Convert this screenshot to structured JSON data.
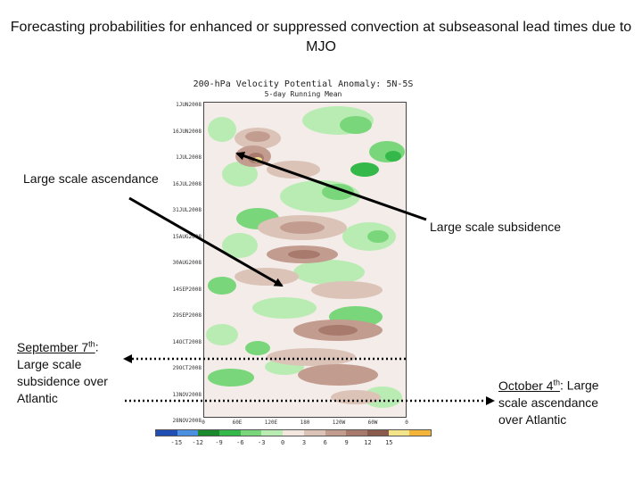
{
  "slide": {
    "title": "Forecasting probabilities for enhanced or suppressed convection at subseasonal lead times due to MJO"
  },
  "figure": {
    "title_line1": "200-hPa Velocity Potential Anomaly: 5N-5S",
    "title_line2": "5-day Running Mean",
    "y_tick_labels": [
      "1JUN2008",
      "16JUN2008",
      "1JUL2008",
      "16JUL2008",
      "31JUL2008",
      "15AUG2008",
      "30AUG2008",
      "14SEP2008",
      "29SEP2008",
      "14OCT2008",
      "29OCT2008",
      "13NOV2008",
      "28NOV2008"
    ],
    "x_tick_labels": [
      "0",
      "60E",
      "120E",
      "180",
      "120W",
      "60W",
      "0"
    ],
    "colorbar": {
      "colors": [
        "#1f4fb4",
        "#4a8fe0",
        "#1a8a2c",
        "#34b84a",
        "#79d67a",
        "#b9ecb3",
        "#f2e6df",
        "#dcc3b8",
        "#c39c90",
        "#a87a6e",
        "#8a5a4d",
        "#f3e48a",
        "#f4b43a"
      ],
      "tick_labels": [
        "-15",
        "-12",
        "-9",
        "-6",
        "-3",
        "0",
        "3",
        "6",
        "9",
        "12",
        "15"
      ]
    }
  },
  "annotations": {
    "ascendance": "Large scale ascendance",
    "subsidence": "Large scale subsidence",
    "sept_date": "September 7",
    "sept_sup": "th",
    "sept_rest": ": Large scale subsidence over Atlantic",
    "oct_date": "October 4",
    "oct_sup": "th",
    "oct_rest": ": Large scale ascendance over Atlantic"
  },
  "colors": {
    "suppressed": "#a87a6e",
    "enhanced": "#34b84a",
    "arrow": "#000000"
  }
}
